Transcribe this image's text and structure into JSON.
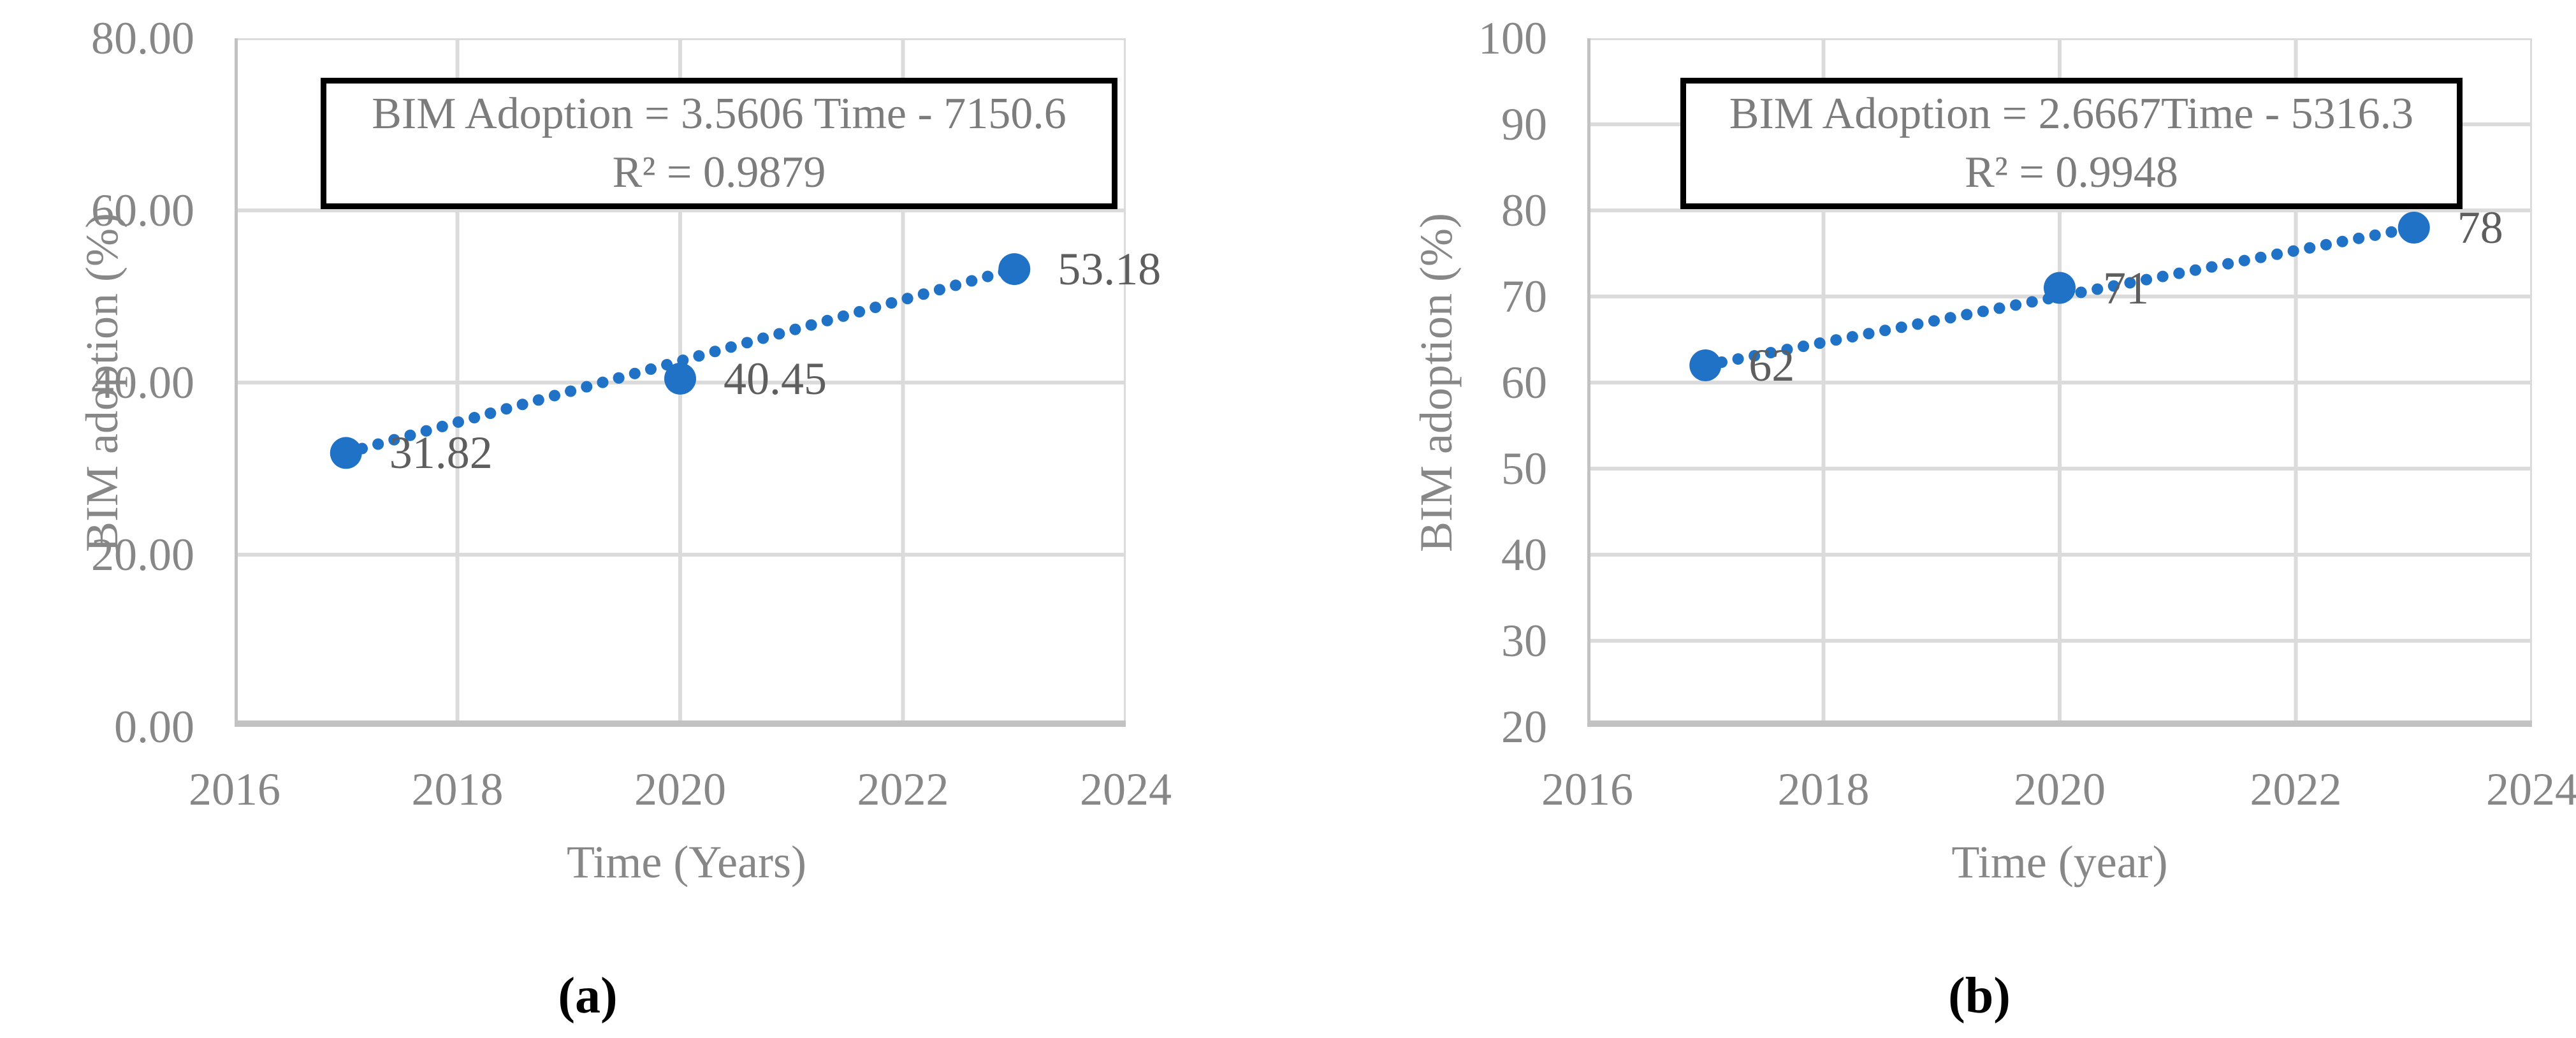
{
  "figure": {
    "description_colors": {
      "point_blue": "#1F72C5",
      "gridline": "#DBDBDB",
      "axis_line": "#C2C2C2",
      "tick_label_gray": "#878787",
      "data_label_gray": "#5E5E5E",
      "equation_text_gray": "#7C7C7C",
      "equation_box_border": "#000000",
      "caption_black": "#000000"
    }
  },
  "chart_data": [
    {
      "type": "scatter",
      "caption": "(a)",
      "title": "",
      "xlabel": "Time (Years)",
      "ylabel": "BIM adoption (%)",
      "x": [
        2017,
        2020,
        2023
      ],
      "y": [
        31.82,
        40.45,
        53.18
      ],
      "point_labels": [
        "31.82",
        "40.45",
        "53.18"
      ],
      "xlim": [
        2016,
        2024
      ],
      "ylim": [
        0,
        80
      ],
      "x_ticks": [
        "2016",
        "2018",
        "2020",
        "2022",
        "2024"
      ],
      "x_tick_values": [
        2016,
        2018,
        2020,
        2022,
        2024
      ],
      "y_ticks": [
        "0.00",
        "20.00",
        "40.00",
        "60.00",
        "80.00"
      ],
      "y_tick_values": [
        0,
        20,
        40,
        60,
        80
      ],
      "grid": true,
      "legend": "none",
      "trendline": {
        "style": "dotted",
        "slope": 3.5606,
        "intercept": -7150.6,
        "r_squared": 0.9879,
        "equation_label": "BIM Adoption = 3.5606 Time - 7150.6",
        "r_squared_label": "R² = 0.9879"
      }
    },
    {
      "type": "scatter",
      "caption": "(b)",
      "title": "",
      "xlabel": "Time (year)",
      "ylabel": "BIM adoption (%)",
      "x": [
        2017,
        2020,
        2023
      ],
      "y": [
        62,
        71,
        78
      ],
      "point_labels": [
        "62",
        "71",
        "78"
      ],
      "xlim": [
        2016,
        2024
      ],
      "ylim": [
        20,
        100
      ],
      "x_ticks": [
        "2016",
        "2018",
        "2020",
        "2022",
        "2024"
      ],
      "x_tick_values": [
        2016,
        2018,
        2020,
        2022,
        2024
      ],
      "y_ticks": [
        "20",
        "30",
        "40",
        "50",
        "60",
        "70",
        "80",
        "90",
        "100"
      ],
      "y_tick_values": [
        20,
        30,
        40,
        50,
        60,
        70,
        80,
        90,
        100
      ],
      "grid": true,
      "legend": "none",
      "trendline": {
        "style": "dotted",
        "slope": 2.6667,
        "intercept": -5316.3,
        "r_squared": 0.9948,
        "equation_label": "BIM Adoption = 2.6667Time - 5316.3",
        "r_squared_label": "R² = 0.9948"
      }
    }
  ]
}
